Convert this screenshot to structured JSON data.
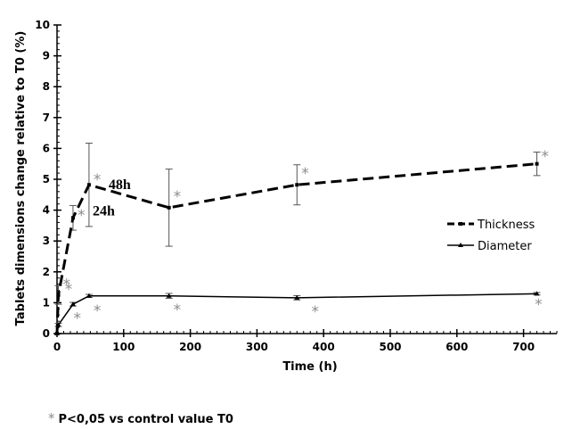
{
  "chart_data": {
    "type": "line",
    "xlabel": "Time (h)",
    "ylabel": "Tablets dimensions change relative to T0 (%)",
    "xlim": [
      0,
      750
    ],
    "ylim": [
      0,
      10
    ],
    "x_ticks": [
      0,
      100,
      200,
      300,
      400,
      500,
      600,
      700
    ],
    "y_ticks": [
      0,
      1,
      2,
      3,
      4,
      5,
      6,
      7,
      8,
      9,
      10
    ],
    "legend_position": "right",
    "series": [
      {
        "name": "Thickness",
        "style": "dashed",
        "color": "#000000",
        "x": [
          0,
          2,
          24,
          48,
          168,
          360,
          720
        ],
        "y": [
          0,
          1.25,
          3.75,
          4.82,
          4.08,
          4.82,
          5.5
        ],
        "err": [
          0,
          0.3,
          0.4,
          1.35,
          1.25,
          0.65,
          0.38
        ],
        "sig_x": [
          2,
          24,
          48,
          168,
          360,
          720
        ],
        "sig_y": [
          1.6,
          3.85,
          5.0,
          4.45,
          5.2,
          5.75
        ],
        "point_labels": [
          {
            "x": 24,
            "y": 3.75,
            "text": "24h"
          },
          {
            "x": 48,
            "y": 4.82,
            "text": "48h"
          }
        ]
      },
      {
        "name": "Diameter",
        "style": "solid",
        "color": "#000000",
        "x": [
          0,
          2,
          24,
          48,
          168,
          360,
          720
        ],
        "y": [
          0,
          0.28,
          0.95,
          1.22,
          1.22,
          1.16,
          1.29
        ],
        "err": [
          0,
          0.05,
          0.06,
          0.05,
          0.08,
          0.07,
          0.04
        ],
        "sig_x": [
          5,
          18,
          48,
          168,
          375,
          710
        ],
        "sig_y": [
          1.45,
          0.5,
          0.75,
          0.78,
          0.72,
          0.95
        ]
      }
    ],
    "sig_symbol": "*",
    "footnote": "P<0,05 vs control value T0"
  }
}
